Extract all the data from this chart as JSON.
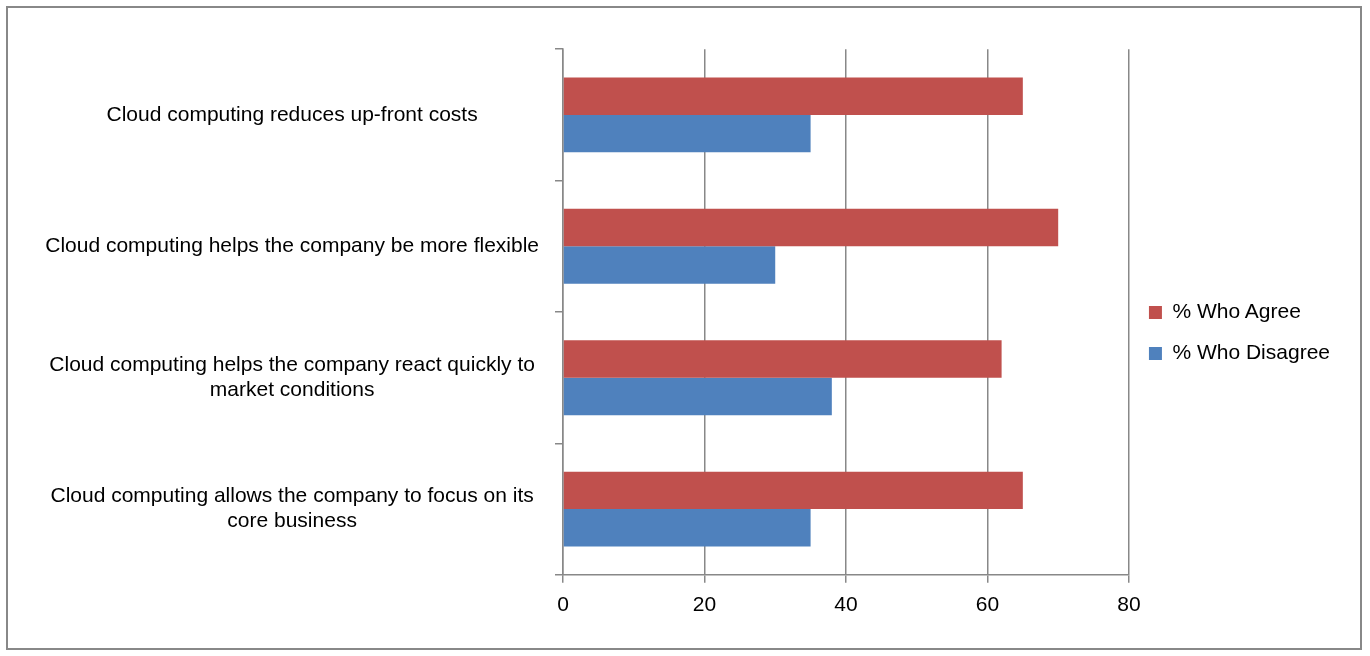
{
  "chart_data": {
    "type": "bar",
    "orientation": "horizontal",
    "categories": [
      "Cloud computing reduces up-front costs",
      "Cloud computing helps the company be more flexible",
      "Cloud computing helps the company react quickly to market conditions",
      "Cloud computing allows the company to focus on its core business"
    ],
    "series": [
      {
        "name": "% Who Agree",
        "color": "#c0504d",
        "values": [
          65,
          70,
          62,
          65
        ]
      },
      {
        "name": "% Who Disagree",
        "color": "#4f81bd",
        "values": [
          35,
          30,
          38,
          35
        ]
      }
    ],
    "xlim": [
      0,
      80
    ],
    "xticks": [
      0,
      20,
      40,
      60,
      80
    ],
    "grid": "x",
    "legend": "right"
  }
}
